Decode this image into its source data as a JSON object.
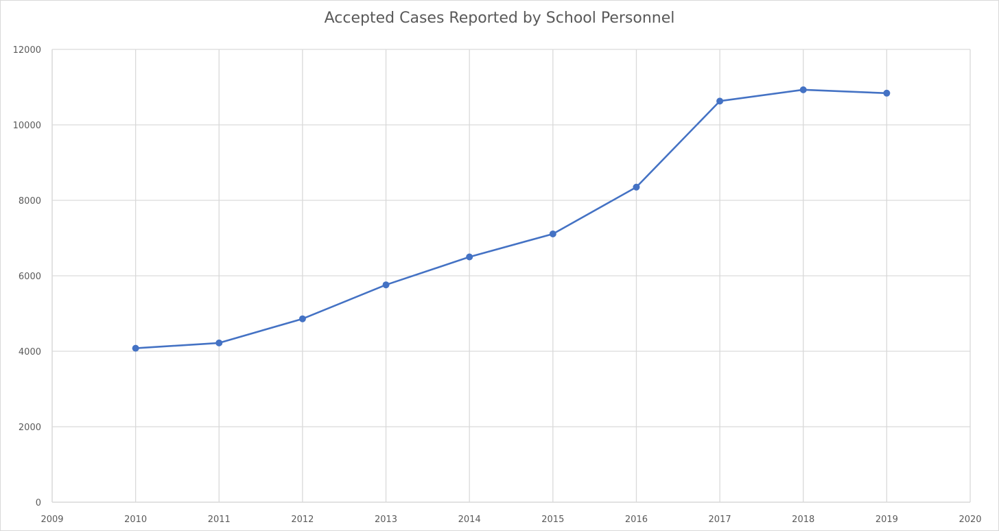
{
  "chart_data": {
    "type": "scatter",
    "mode": "lines+markers",
    "title": "Accepted Cases Reported by School Personnel",
    "xlabel": "",
    "ylabel": "",
    "x": [
      2010,
      2011,
      2012,
      2013,
      2014,
      2015,
      2016,
      2017,
      2018,
      2019
    ],
    "y": [
      4080,
      4220,
      4860,
      5760,
      6500,
      7110,
      8350,
      10630,
      10930,
      10840
    ],
    "xlim": [
      2009,
      2020
    ],
    "ylim": [
      0,
      12000
    ],
    "x_ticks": [
      "2009",
      "2010",
      "2011",
      "2012",
      "2013",
      "2014",
      "2015",
      "2016",
      "2017",
      "2018",
      "2019",
      "2020"
    ],
    "y_ticks": [
      "0",
      "2000",
      "4000",
      "6000",
      "8000",
      "10000",
      "12000"
    ],
    "grid": true,
    "legend": "none",
    "colors": {
      "series": "#4472c4",
      "grid": "#d9d9d9",
      "text": "#595959"
    }
  }
}
